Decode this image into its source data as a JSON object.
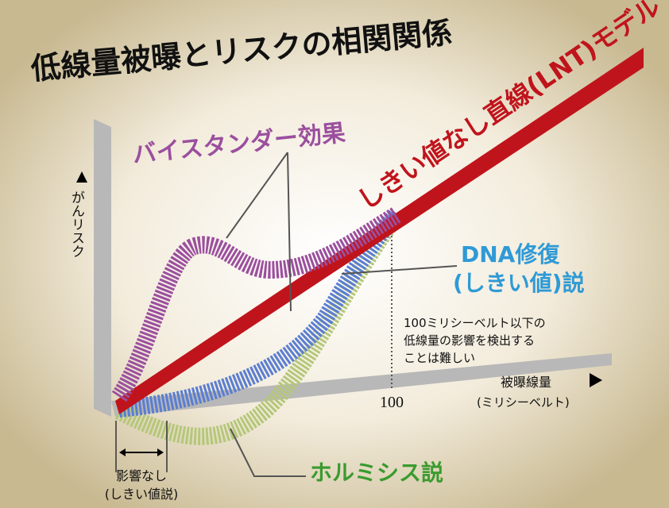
{
  "title": "低線量被曝とリスクの相関関係",
  "models": {
    "lnt": "しきい値なし直線(LNT)モデル",
    "bystander": "バイスタンダー効果",
    "dna_repair": [
      "DNA修復",
      "(しきい値)説"
    ],
    "hormesis": "ホルミシス説"
  },
  "y_axis_label": "がんリスク",
  "x_axis_label": [
    "被曝線量",
    "(ミリシーベルト)"
  ],
  "x_tick": "100",
  "note": [
    "100ミリシーベルト以下の",
    "低線量の影響を検出する",
    "ことは難しい"
  ],
  "no_effect": [
    "影響なし",
    "(しきい値説)"
  ]
}
